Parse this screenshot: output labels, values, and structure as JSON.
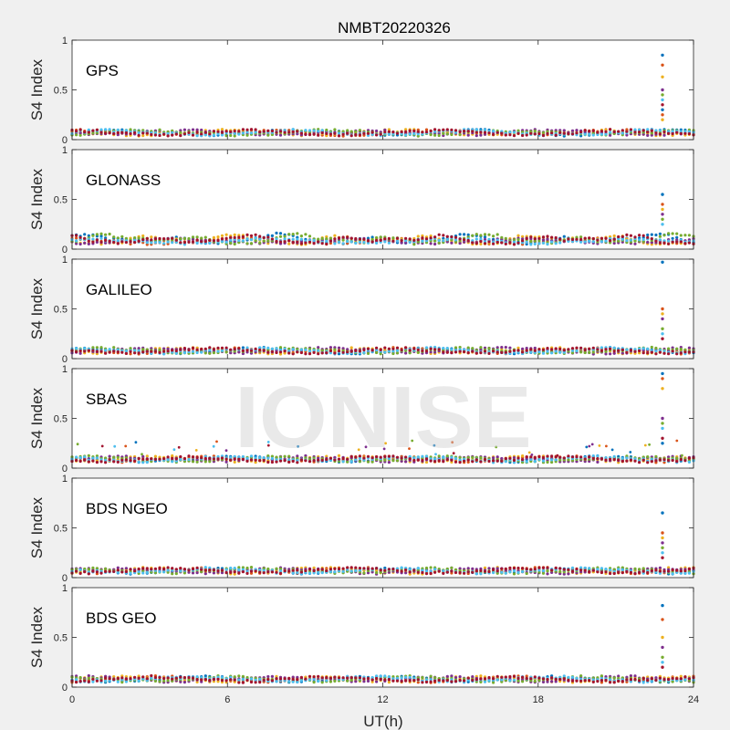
{
  "figure": {
    "title": "NMBT20220326",
    "watermark": "IONISE",
    "xlabel": "UT(h)",
    "background": "#f0f0f0",
    "axes_background": "#ffffff"
  },
  "palette": [
    "#0072bd",
    "#d95319",
    "#edb120",
    "#7e2f8e",
    "#77ac30",
    "#4dbeee",
    "#a2142f"
  ],
  "chart_data": [
    {
      "type": "scatter",
      "name": "GPS",
      "ylabel": "S4 Index",
      "xlim": [
        0,
        24
      ],
      "ylim": [
        0,
        1
      ],
      "xticks": [
        0,
        6,
        12,
        18,
        24
      ],
      "yticks": [
        0,
        0.5,
        1
      ],
      "tick_labels_y": [
        "0",
        "0.5",
        "1"
      ],
      "baseline_s4": 0.07,
      "spike": {
        "x": 22.8,
        "values": [
          0.85,
          0.75,
          0.63,
          0.5,
          0.45,
          0.4,
          0.35,
          0.3,
          0.25,
          0.2
        ]
      }
    },
    {
      "type": "scatter",
      "name": "GLONASS",
      "ylabel": "S4 Index",
      "xlim": [
        0,
        24
      ],
      "ylim": [
        0,
        1
      ],
      "xticks": [
        0,
        6,
        12,
        18,
        24
      ],
      "yticks": [
        0,
        0.5,
        1
      ],
      "tick_labels_y": [
        "0",
        "0.5",
        "1"
      ],
      "baseline_s4": 0.08,
      "spike": {
        "x": 22.8,
        "values": [
          0.55,
          0.45,
          0.4,
          0.35,
          0.3,
          0.25
        ]
      }
    },
    {
      "type": "scatter",
      "name": "GALILEO",
      "ylabel": "S4 Index",
      "xlim": [
        0,
        24
      ],
      "ylim": [
        0,
        1
      ],
      "xticks": [
        0,
        6,
        12,
        18,
        24
      ],
      "yticks": [
        0,
        0.5,
        1
      ],
      "tick_labels_y": [
        "0",
        "0.5",
        "1"
      ],
      "baseline_s4": 0.08,
      "spike": {
        "x": 22.8,
        "values": [
          0.97,
          0.5,
          0.45,
          0.4,
          0.3,
          0.25,
          0.2
        ]
      }
    },
    {
      "type": "scatter",
      "name": "SBAS",
      "ylabel": "S4 Index",
      "xlim": [
        0,
        24
      ],
      "ylim": [
        0,
        1
      ],
      "xticks": [
        0,
        6,
        12,
        18,
        24
      ],
      "yticks": [
        0,
        0.5,
        1
      ],
      "tick_labels_y": [
        "0",
        "0.5",
        "1"
      ],
      "baseline_s4": 0.09,
      "spike": {
        "x": 22.8,
        "values": [
          0.95,
          0.9,
          0.8,
          0.5,
          0.45,
          0.4,
          0.3,
          0.25
        ]
      }
    },
    {
      "type": "scatter",
      "name": "BDS NGEO",
      "ylabel": "S4 Index",
      "xlim": [
        0,
        24
      ],
      "ylim": [
        0,
        1
      ],
      "xticks": [
        0,
        6,
        12,
        18,
        24
      ],
      "yticks": [
        0,
        0.5,
        1
      ],
      "tick_labels_y": [
        "0",
        "0.5",
        "1"
      ],
      "baseline_s4": 0.07,
      "spike": {
        "x": 22.8,
        "values": [
          0.65,
          0.45,
          0.4,
          0.35,
          0.3,
          0.25,
          0.2
        ]
      }
    },
    {
      "type": "scatter",
      "name": "BDS GEO",
      "ylabel": "S4 Index",
      "xlim": [
        0,
        24
      ],
      "ylim": [
        0,
        1
      ],
      "xticks": [
        0,
        6,
        12,
        18,
        24
      ],
      "yticks": [
        0,
        0.5,
        1
      ],
      "tick_labels_y": [
        "0",
        "0.5",
        "1"
      ],
      "baseline_s4": 0.08,
      "spike": {
        "x": 22.8,
        "values": [
          0.82,
          0.68,
          0.5,
          0.4,
          0.3,
          0.25,
          0.2
        ]
      }
    }
  ]
}
